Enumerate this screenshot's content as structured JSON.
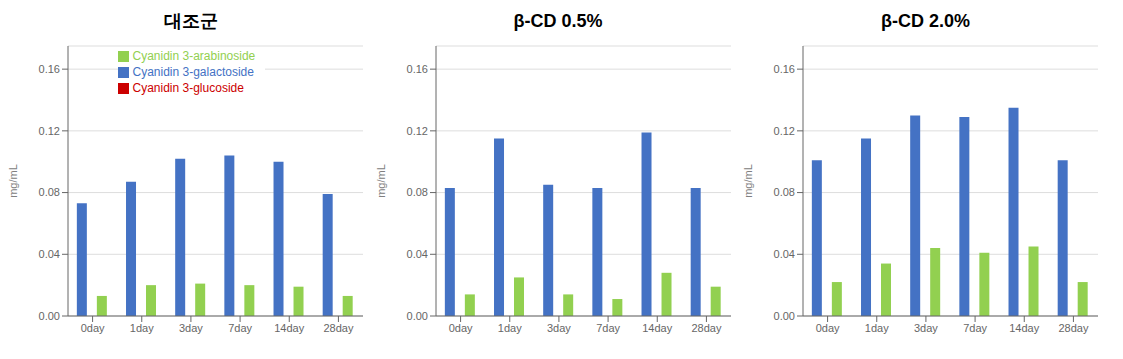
{
  "chart_data": [
    {
      "type": "bar",
      "title": "대조군",
      "categories": [
        "0day",
        "1day",
        "3day",
        "7day",
        "14day",
        "28day"
      ],
      "y_label": "mg/mL",
      "series": [
        {
          "name": "Cyanidin 3-galactoside",
          "color": "#4472C4",
          "values": [
            0.073,
            0.087,
            0.102,
            0.104,
            0.1,
            0.079
          ]
        },
        {
          "name": "Cyanidin 3-glucoside",
          "color": "#CC0000",
          "values": [
            0.0,
            0.0,
            0.0,
            0.0,
            0.0,
            0.0
          ]
        },
        {
          "name": "Cyanidin 3-arabinoside",
          "color": "#92D050",
          "values": [
            0.013,
            0.02,
            0.021,
            0.02,
            0.019,
            0.013
          ]
        }
      ],
      "ylim": [
        0,
        0.175
      ],
      "yticks": [
        {
          "value": 0,
          "label": "0.00"
        },
        0.04,
        0.08,
        0.12,
        0.16
      ],
      "grid": true,
      "legend": "upper center"
    },
    {
      "type": "bar",
      "title": "β-CD  0.5%",
      "categories": [
        "0day",
        "1day",
        "3day",
        "7day",
        "14day",
        "28day"
      ],
      "y_label": "mg/mL",
      "series": [
        {
          "name": "Cyanidin 3-galactoside",
          "color": "#4472C4",
          "values": [
            0.083,
            0.115,
            0.085,
            0.083,
            0.119,
            0.083
          ]
        },
        {
          "name": "Cyanidin 3-glucoside",
          "color": "#CC0000",
          "values": [
            0.0,
            0.0,
            0.0,
            0.0,
            0.0,
            0.0
          ]
        },
        {
          "name": "Cyanidin 3-arabinoside",
          "color": "#92D050",
          "values": [
            0.014,
            0.025,
            0.014,
            0.011,
            0.028,
            0.019
          ]
        }
      ],
      "ylim": [
        0,
        0.175
      ],
      "yticks": [
        {
          "value": 0,
          "label": "0.00"
        },
        0.04,
        0.08,
        0.12,
        0.16
      ],
      "grid": true
    },
    {
      "type": "bar",
      "title": "β-CD  2.0%",
      "categories": [
        "0day",
        "1day",
        "3day",
        "7day",
        "14day",
        "28day"
      ],
      "y_label": "mg/mL",
      "series": [
        {
          "name": "Cyanidin 3-galactoside",
          "color": "#4472C4",
          "values": [
            0.101,
            0.115,
            0.13,
            0.129,
            0.135,
            0.101
          ]
        },
        {
          "name": "Cyanidin 3-glucoside",
          "color": "#CC0000",
          "values": [
            0.0,
            0.0,
            0.0,
            0.0,
            0.0,
            0.0
          ]
        },
        {
          "name": "Cyanidin 3-arabinoside",
          "color": "#92D050",
          "values": [
            0.022,
            0.034,
            0.044,
            0.041,
            0.045,
            0.022
          ]
        }
      ],
      "ylim": [
        0,
        0.175
      ],
      "yticks": [
        {
          "value": 0,
          "label": "0.00"
        },
        0.04,
        0.08,
        0.12,
        0.16
      ],
      "grid": true
    }
  ]
}
